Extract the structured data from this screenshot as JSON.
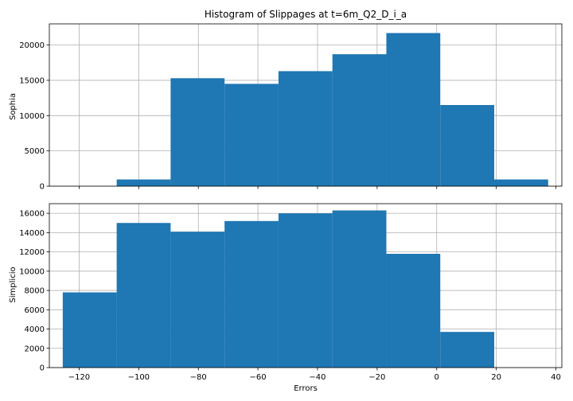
{
  "chart_data": [
    {
      "type": "bar",
      "title": "Histogram of Slippages at t=6m_Q2_D_i_a",
      "ylabel": "Sophia",
      "xlabel": "",
      "xlim": [
        -130,
        42
      ],
      "ylim": [
        0,
        23000
      ],
      "grid": true,
      "bar_color": "#1f77b4",
      "bins": [
        {
          "x0": -125.5,
          "x1": -107.4,
          "value": 0
        },
        {
          "x0": -107.4,
          "x1": -89.3,
          "value": 950
        },
        {
          "x0": -89.3,
          "x1": -71.2,
          "value": 15300
        },
        {
          "x0": -71.2,
          "x1": -53.1,
          "value": 14500
        },
        {
          "x0": -53.1,
          "x1": -35.0,
          "value": 16300
        },
        {
          "x0": -35.0,
          "x1": -16.9,
          "value": 18700
        },
        {
          "x0": -16.9,
          "x1": 1.2,
          "value": 21700
        },
        {
          "x0": 1.2,
          "x1": 19.3,
          "value": 11500
        },
        {
          "x0": 19.3,
          "x1": 37.4,
          "value": 950
        }
      ],
      "yticks": [
        {
          "value": 0,
          "label": "0"
        },
        {
          "value": 5000,
          "label": "5000"
        },
        {
          "value": 10000,
          "label": "10000"
        },
        {
          "value": 15000,
          "label": "15000"
        },
        {
          "value": 20000,
          "label": "20000"
        }
      ]
    },
    {
      "type": "bar",
      "title": "",
      "ylabel": "Simplicio",
      "xlabel": "Errors",
      "xlim": [
        -130,
        42
      ],
      "ylim": [
        0,
        17000
      ],
      "grid": true,
      "bar_color": "#1f77b4",
      "bins": [
        {
          "x0": -125.5,
          "x1": -107.4,
          "value": 7800
        },
        {
          "x0": -107.4,
          "x1": -89.3,
          "value": 15000
        },
        {
          "x0": -89.3,
          "x1": -71.2,
          "value": 14100
        },
        {
          "x0": -71.2,
          "x1": -53.1,
          "value": 15200
        },
        {
          "x0": -53.1,
          "x1": -35.0,
          "value": 16000
        },
        {
          "x0": -35.0,
          "x1": -16.9,
          "value": 16300
        },
        {
          "x0": -16.9,
          "x1": 1.2,
          "value": 11800
        },
        {
          "x0": 1.2,
          "x1": 19.3,
          "value": 3700
        },
        {
          "x0": 19.3,
          "x1": 37.4,
          "value": 0
        }
      ],
      "yticks": [
        {
          "value": 0,
          "label": "0"
        },
        {
          "value": 2000,
          "label": "2000"
        },
        {
          "value": 4000,
          "label": "4000"
        },
        {
          "value": 6000,
          "label": "6000"
        },
        {
          "value": 8000,
          "label": "8000"
        },
        {
          "value": 10000,
          "label": "10000"
        },
        {
          "value": 12000,
          "label": "12000"
        },
        {
          "value": 14000,
          "label": "14000"
        },
        {
          "value": 16000,
          "label": "16000"
        }
      ]
    }
  ],
  "xticks": [
    {
      "value": -120,
      "label": "−120"
    },
    {
      "value": -100,
      "label": "−100"
    },
    {
      "value": -80,
      "label": "−80"
    },
    {
      "value": -60,
      "label": "−60"
    },
    {
      "value": -40,
      "label": "−40"
    },
    {
      "value": -20,
      "label": "−20"
    },
    {
      "value": 0,
      "label": "0"
    },
    {
      "value": 20,
      "label": "20"
    },
    {
      "value": 40,
      "label": "40"
    }
  ]
}
